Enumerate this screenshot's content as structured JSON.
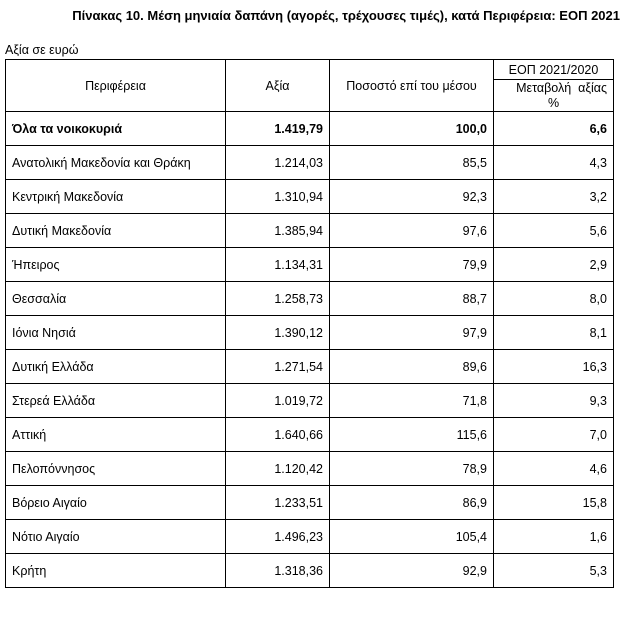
{
  "title": "Πίνακας 10. Μέση μηνιαία δαπάνη (αγορές, τρέχουσες τιμές), κατά Περιφέρεια: ΕΟΠ 2021",
  "unit_note": "Αξία σε ευρώ",
  "headers": {
    "region": "Περιφέρεια",
    "value": "Αξία",
    "percent_of_mean": "Ποσοστό επί του μέσου",
    "group": "ΕΟΠ 2021/2020",
    "change_line1": "Μεταβολή  αξίας",
    "change_line2": "%"
  },
  "rows": [
    {
      "region": "Όλα τα νοικοκυριά",
      "value": "1.419,79",
      "pct": "100,0",
      "change": "6,6"
    },
    {
      "region": "Ανατολική Μακεδονία και Θράκη",
      "value": "1.214,03",
      "pct": "85,5",
      "change": "4,3"
    },
    {
      "region": "Κεντρική Μακεδονία",
      "value": "1.310,94",
      "pct": "92,3",
      "change": "3,2"
    },
    {
      "region": "Δυτική Μακεδονία",
      "value": "1.385,94",
      "pct": "97,6",
      "change": "5,6"
    },
    {
      "region": "Ήπειρος",
      "value": "1.134,31",
      "pct": "79,9",
      "change": "2,9"
    },
    {
      "region": "Θεσσαλία",
      "value": "1.258,73",
      "pct": "88,7",
      "change": "8,0"
    },
    {
      "region": "Ιόνια Νησιά",
      "value": "1.390,12",
      "pct": "97,9",
      "change": "8,1"
    },
    {
      "region": "Δυτική Ελλάδα",
      "value": "1.271,54",
      "pct": "89,6",
      "change": "16,3"
    },
    {
      "region": "Στερεά Ελλάδα",
      "value": "1.019,72",
      "pct": "71,8",
      "change": "9,3"
    },
    {
      "region": "Αττική",
      "value": "1.640,66",
      "pct": "115,6",
      "change": "7,0"
    },
    {
      "region": "Πελοπόννησος",
      "value": "1.120,42",
      "pct": "78,9",
      "change": "4,6"
    },
    {
      "region": "Βόρειο Αιγαίο",
      "value": "1.233,51",
      "pct": "86,9",
      "change": "15,8"
    },
    {
      "region": "Νότιο Αιγαίο",
      "value": "1.496,23",
      "pct": "105,4",
      "change": "1,6"
    },
    {
      "region": "Κρήτη",
      "value": "1.318,36",
      "pct": "92,9",
      "change": "5,3"
    }
  ]
}
